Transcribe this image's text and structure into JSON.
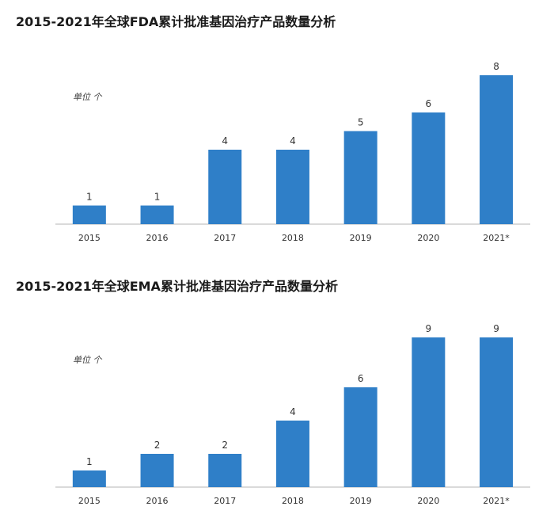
{
  "charts": [
    {
      "title": "2015-2021年全球FDA累计批准基因治疗产品数量分析",
      "unit": "单位 个",
      "chart_data": {
        "type": "bar",
        "title": "2015-2021年全球FDA累计批准基因治疗产品数量分析",
        "categories": [
          "2015",
          "2016",
          "2017",
          "2018",
          "2019",
          "2020",
          "2021*"
        ],
        "values": [
          1,
          1,
          4,
          4,
          5,
          6,
          8
        ],
        "ylabel": "单位 个",
        "ylim": [
          0,
          8
        ],
        "grid": false,
        "color": "#2f7fc8"
      }
    },
    {
      "title": "2015-2021年全球EMA累计批准基因治疗产品数量分析",
      "unit": "单位 个",
      "chart_data": {
        "type": "bar",
        "title": "2015-2021年全球EMA累计批准基因治疗产品数量分析",
        "categories": [
          "2015",
          "2016",
          "2017",
          "2018",
          "2019",
          "2020",
          "2021*"
        ],
        "values": [
          1,
          2,
          2,
          4,
          6,
          9,
          9
        ],
        "ylabel": "单位 个",
        "ylim": [
          0,
          9
        ],
        "grid": false,
        "color": "#2f7fc8"
      }
    }
  ]
}
